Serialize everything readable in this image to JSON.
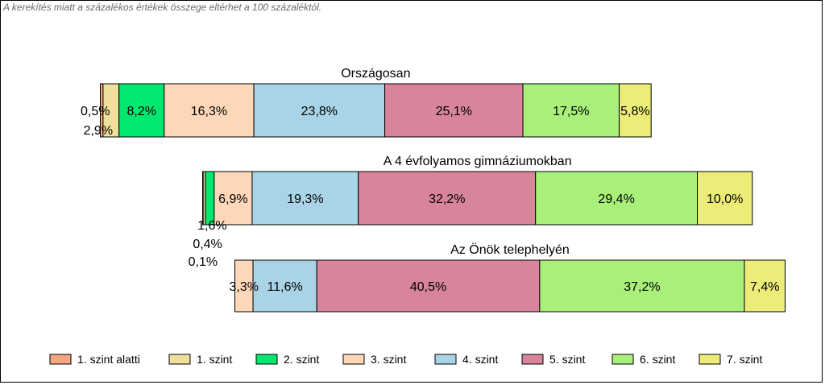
{
  "note": "A kerekítés miatt a  százalékos értékek összege eltérhet a 100 százaléktól.",
  "chart_data": {
    "type": "bar",
    "orientation": "horizontal-stacked",
    "categories": [
      "1. szint alatti",
      "1. szint",
      "2. szint",
      "3. szint",
      "4. szint",
      "5. szint",
      "6. szint",
      "7. szint"
    ],
    "colors": [
      "#f4a582",
      "#ece09a",
      "#00e870",
      "#fdd8b8",
      "#a8d4e6",
      "#d8849a",
      "#a8f07a",
      "#ecec78"
    ],
    "groups": [
      {
        "title": "Országosan",
        "values": [
          0.5,
          2.9,
          8.2,
          16.3,
          23.8,
          25.1,
          17.5,
          5.8
        ],
        "labels": [
          "0,5%",
          "2,9%",
          "8,2%",
          "16,3%",
          "23,8%",
          "25,1%",
          "17,5%",
          "5,8%"
        ]
      },
      {
        "title": "A 4 évfolyamos gimnáziumokban",
        "values": [
          0.1,
          0.4,
          1.6,
          6.9,
          19.3,
          32.2,
          29.4,
          10.0
        ],
        "labels": [
          "0,1%",
          "0,4%",
          "1,6%",
          "6,9%",
          "19,3%",
          "32,2%",
          "29,4%",
          "10,0%"
        ]
      },
      {
        "title": "Az Önök telephelyén",
        "values": [
          0,
          0,
          0,
          3.3,
          11.6,
          40.5,
          37.2,
          7.4
        ],
        "labels": [
          "",
          "",
          "",
          "3,3%",
          "11,6%",
          "40,5%",
          "37,2%",
          "7,4%"
        ]
      }
    ],
    "legend": "bottom"
  }
}
